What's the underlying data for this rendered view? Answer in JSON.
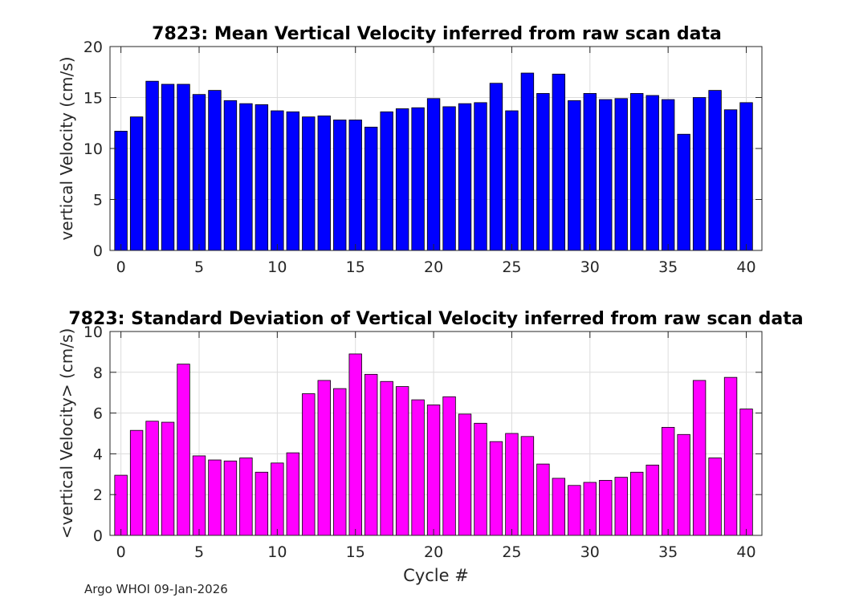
{
  "chart_data": [
    {
      "type": "bar",
      "title": "7823: Mean Vertical Velocity inferred from raw scan data",
      "xlabel": "",
      "ylabel": "vertical Velocity (cm/s)",
      "xlim": [
        -0.7,
        41
      ],
      "ylim": [
        0,
        20
      ],
      "xticks": [
        "0",
        "5",
        "10",
        "15",
        "20",
        "25",
        "30",
        "35",
        "40"
      ],
      "yticks": [
        "0",
        "5",
        "10",
        "15",
        "20"
      ],
      "grid": true,
      "color": "#0000ff",
      "x": [
        0,
        1,
        2,
        3,
        4,
        5,
        6,
        7,
        8,
        9,
        10,
        11,
        12,
        13,
        14,
        15,
        16,
        17,
        18,
        19,
        20,
        21,
        22,
        23,
        24,
        25,
        26,
        27,
        28,
        29,
        30,
        31,
        32,
        33,
        34,
        35,
        36,
        37,
        38,
        39,
        40
      ],
      "values": [
        11.7,
        13.1,
        16.6,
        16.3,
        16.3,
        15.3,
        15.7,
        14.7,
        14.4,
        14.3,
        13.7,
        13.6,
        13.1,
        13.2,
        12.8,
        12.8,
        12.1,
        13.6,
        13.9,
        14.0,
        14.9,
        14.1,
        14.4,
        14.5,
        16.4,
        13.7,
        17.4,
        15.4,
        17.3,
        14.7,
        15.4,
        14.8,
        14.9,
        15.4,
        15.2,
        14.8,
        11.4,
        15.0,
        15.7,
        13.8,
        14.5
      ]
    },
    {
      "type": "bar",
      "title": "7823: Standard Deviation of Vertical Velocity inferred from raw scan data",
      "xlabel": "Cycle #",
      "ylabel": "<vertical Velocity> (cm/s)",
      "xlim": [
        -0.7,
        41
      ],
      "ylim": [
        0,
        10
      ],
      "xticks": [
        "0",
        "5",
        "10",
        "15",
        "20",
        "25",
        "30",
        "35",
        "40"
      ],
      "yticks": [
        "0",
        "2",
        "4",
        "6",
        "8",
        "10"
      ],
      "grid": true,
      "color": "#ff00ff",
      "x": [
        0,
        1,
        2,
        3,
        4,
        5,
        6,
        7,
        8,
        9,
        10,
        11,
        12,
        13,
        14,
        15,
        16,
        17,
        18,
        19,
        20,
        21,
        22,
        23,
        24,
        25,
        26,
        27,
        28,
        29,
        30,
        31,
        32,
        33,
        34,
        35,
        36,
        37,
        38,
        39,
        40
      ],
      "values": [
        2.95,
        5.15,
        5.6,
        5.55,
        8.4,
        3.9,
        3.7,
        3.65,
        3.8,
        3.1,
        3.55,
        4.05,
        6.95,
        7.6,
        7.2,
        8.9,
        7.9,
        7.55,
        7.3,
        6.65,
        6.4,
        6.8,
        5.95,
        5.5,
        4.6,
        5.0,
        4.85,
        3.5,
        2.8,
        2.45,
        2.6,
        2.7,
        2.85,
        3.1,
        3.45,
        5.3,
        4.95,
        7.6,
        3.8,
        7.75,
        6.2
      ]
    }
  ],
  "footer": "Argo WHOI 09-Jan-2026"
}
